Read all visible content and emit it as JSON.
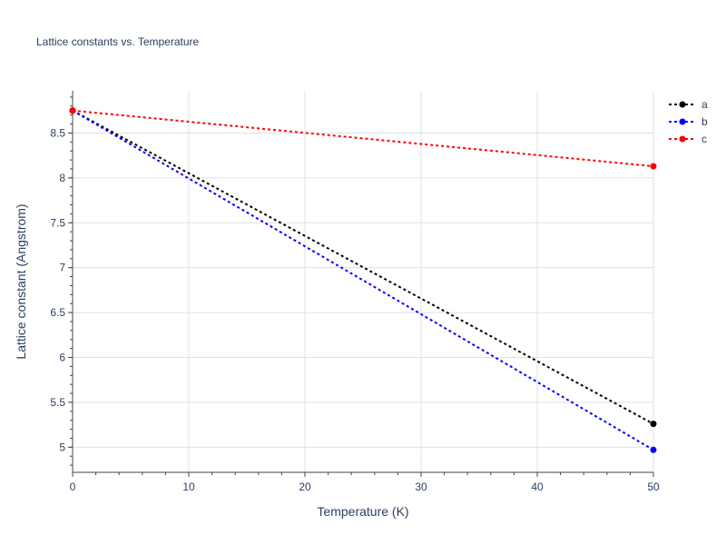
{
  "chart_data": {
    "type": "line",
    "title": "Lattice constants vs. Temperature",
    "xlabel": "Temperature (K)",
    "ylabel": "Lattice constant (Angstrom)",
    "xlim": [
      0,
      50
    ],
    "ylim": [
      4.72,
      8.97
    ],
    "x_ticks": [
      0,
      10,
      20,
      30,
      40,
      50
    ],
    "y_ticks": [
      5,
      5.5,
      6,
      6.5,
      7,
      7.5,
      8,
      8.5
    ],
    "x_tick_labels": [
      "0",
      "10",
      "20",
      "30",
      "40",
      "50"
    ],
    "y_tick_labels": [
      "5",
      "5.5",
      "6",
      "6.5",
      "7",
      "7.5",
      "8",
      "8.5"
    ],
    "grid": true,
    "legend_position": "top-right",
    "series": [
      {
        "name": "a",
        "color": "#000000",
        "x": [
          0,
          50
        ],
        "y": [
          8.75,
          5.26
        ]
      },
      {
        "name": "b",
        "color": "#0000ff",
        "x": [
          0,
          50
        ],
        "y": [
          8.75,
          4.97
        ]
      },
      {
        "name": "c",
        "color": "#ff0000",
        "x": [
          0,
          50
        ],
        "y": [
          8.75,
          8.13
        ]
      }
    ]
  }
}
